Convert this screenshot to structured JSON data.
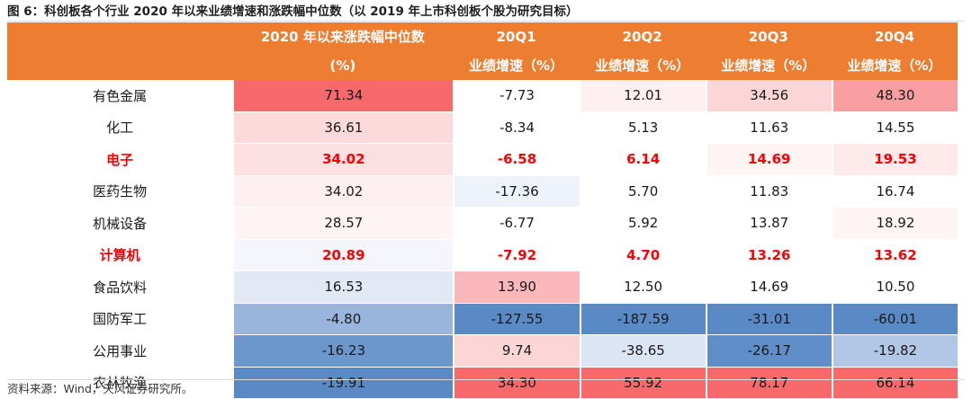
{
  "title": "图 6：科创板各个行业 2020 年以来业绩增速和涨跌幅中位数（以 2019 年上市科创板个股为研究目标）",
  "source": "资料来源：Wind，天风证券研究所。",
  "header": {
    "row1": [
      "",
      "2020 年以来涨跌幅中位数",
      "20Q1",
      "20Q2",
      "20Q3",
      "20Q4"
    ],
    "row2": [
      "",
      "(%)",
      "业绩增速（%）",
      "业绩增速（%）",
      "业绩增速（%）",
      "业绩增速（%）"
    ]
  },
  "colors": {
    "header_bg": "#ED7D31",
    "highlight_text": "#ff0000"
  },
  "rows": [
    {
      "name": "有色金属",
      "highlight": false,
      "values": [
        "71.34",
        "-7.73",
        "12.01",
        "34.56",
        "48.30"
      ],
      "colors": [
        "#F8696B",
        "#FFFFFF",
        "#FEF0F0",
        "#FCD6D7",
        "#FA9FA1"
      ]
    },
    {
      "name": "化工",
      "highlight": false,
      "values": [
        "36.61",
        "-8.34",
        "5.13",
        "11.63",
        "14.55"
      ],
      "colors": [
        "#FCD9DA",
        "#FFFFFF",
        "#FFFFFF",
        "#FFFFFF",
        "#FFFFFF"
      ]
    },
    {
      "name": "电子",
      "highlight": true,
      "values": [
        "34.02",
        "-6.58",
        "6.14",
        "14.69",
        "19.53"
      ],
      "colors": [
        "#FDE0E1",
        "#FFFFFF",
        "#FFFFFF",
        "#FEF4F4",
        "#FEEAEA"
      ]
    },
    {
      "name": "医药生物",
      "highlight": false,
      "values": [
        "34.02",
        "-17.36",
        "5.70",
        "11.83",
        "16.74"
      ],
      "colors": [
        "#FEF0F0",
        "#EEF2FA",
        "#FFFFFF",
        "#FFFFFF",
        "#FFFFFF"
      ]
    },
    {
      "name": "机械设备",
      "highlight": false,
      "values": [
        "28.57",
        "-6.77",
        "5.92",
        "13.87",
        "18.92"
      ],
      "colors": [
        "#FEF4F4",
        "#FFFFFF",
        "#FFFFFF",
        "#FFFFFF",
        "#FEF4F4"
      ]
    },
    {
      "name": "计算机",
      "highlight": true,
      "values": [
        "20.89",
        "-7.92",
        "4.70",
        "13.26",
        "13.62"
      ],
      "colors": [
        "#F4F6FB",
        "#FFFFFF",
        "#FFFFFF",
        "#FFFFFF",
        "#FFFFFF"
      ]
    },
    {
      "name": "食品饮料",
      "highlight": false,
      "values": [
        "16.53",
        "13.90",
        "12.50",
        "14.69",
        "10.50"
      ],
      "colors": [
        "#E2E9F4",
        "#FBB8BA",
        "#FFFFFF",
        "#FFFFFF",
        "#FFFFFF"
      ]
    },
    {
      "name": "国防军工",
      "highlight": false,
      "values": [
        "-4.80",
        "-127.55",
        "-187.59",
        "-31.01",
        "-60.01"
      ],
      "colors": [
        "#99B4DD",
        "#5A8AC6",
        "#5A8AC6",
        "#5A8AC6",
        "#5A8AC6"
      ]
    },
    {
      "name": "公用事业",
      "highlight": false,
      "values": [
        "-16.23",
        "9.74",
        "-38.65",
        "-26.17",
        "-19.82"
      ],
      "colors": [
        "#6B97CC",
        "#FCD6D7",
        "#DCE5F3",
        "#5F8EC8",
        "#B2C7E6"
      ]
    },
    {
      "name": "农林牧渔",
      "highlight": false,
      "values": [
        "-19.91",
        "34.30",
        "55.92",
        "78.17",
        "66.14"
      ],
      "colors": [
        "#5A8AC6",
        "#F8696B",
        "#F8696B",
        "#F8696B",
        "#F8696B"
      ]
    }
  ]
}
